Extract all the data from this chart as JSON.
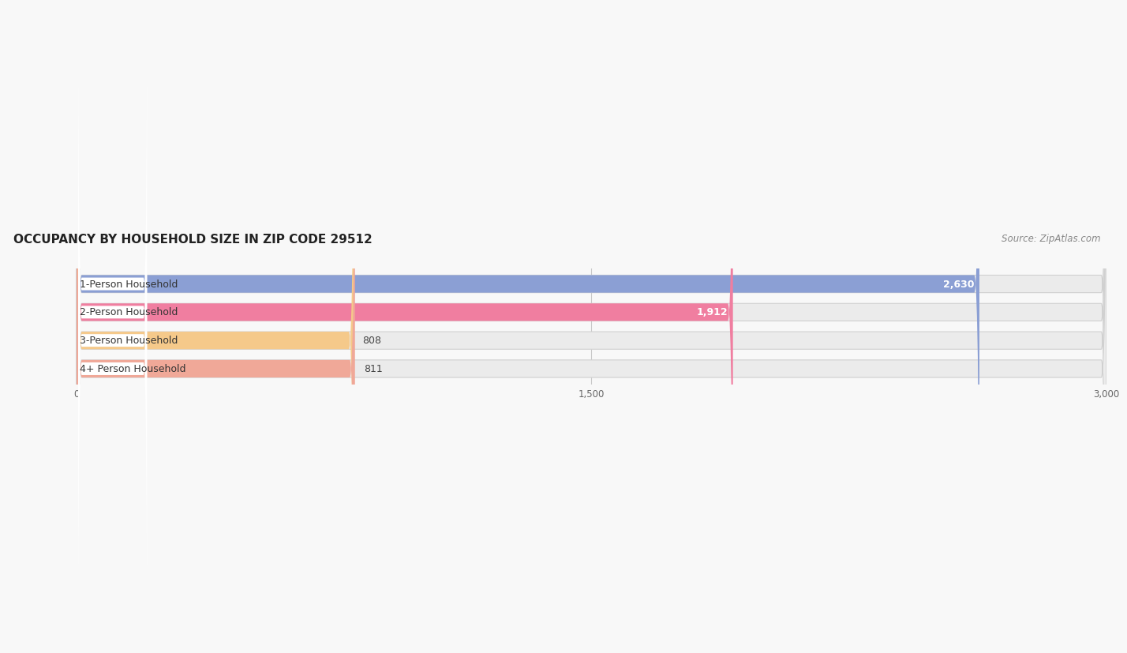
{
  "title": "OCCUPANCY BY HOUSEHOLD SIZE IN ZIP CODE 29512",
  "source": "Source: ZipAtlas.com",
  "categories": [
    "1-Person Household",
    "2-Person Household",
    "3-Person Household",
    "4+ Person Household"
  ],
  "values": [
    2630,
    1912,
    808,
    811
  ],
  "bar_colors": [
    "#8B9FD4",
    "#F07EA0",
    "#F5C98A",
    "#F0A898"
  ],
  "bar_bg_colors": [
    "#EBEBEB",
    "#EBEBEB",
    "#EBEBEB",
    "#EBEBEB"
  ],
  "xlim": [
    -200,
    3000
  ],
  "xmin": 0,
  "xmax": 3000,
  "xticks": [
    0,
    1500,
    3000
  ],
  "xtick_labels": [
    "0",
    "1,500",
    "3,000"
  ],
  "title_fontsize": 11,
  "source_fontsize": 8.5,
  "label_fontsize": 9,
  "value_fontsize": 9,
  "bg_color": "#FFFFFF",
  "figure_bg": "#F8F8F8",
  "bar_height": 0.62,
  "label_pill_colors": [
    "#FFFFFF",
    "#FFFFFF",
    "#FFFFFF",
    "#FFFFFF"
  ],
  "label_text_color": "#333333",
  "value_inside_color": "#FFFFFF",
  "value_outside_color": "#555555"
}
